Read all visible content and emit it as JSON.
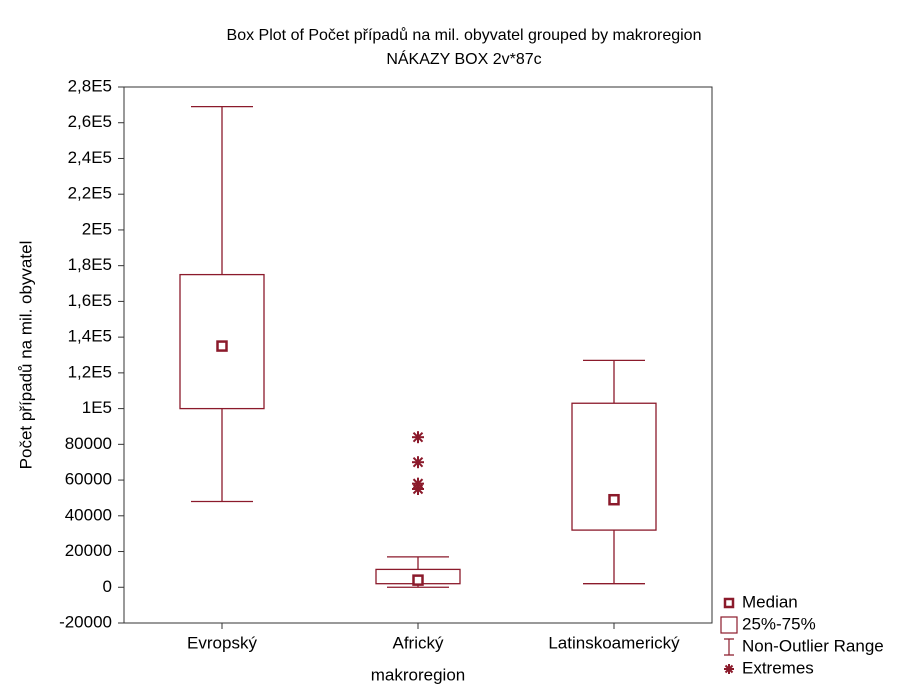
{
  "chart_data": {
    "type": "box",
    "title": "Box Plot of Počet případů na mil. obyvatel grouped by  makroregion",
    "subtitle": "NÁKAZY BOX 2v*87c",
    "x_label": "makroregion",
    "y_label": "Počet případů na mil. obyvatel",
    "categories": [
      "Evropský",
      "Africký",
      "Latinskoamerický"
    ],
    "boxes": [
      {
        "min": 48000,
        "q1": 100000,
        "median": 135000,
        "q3": 175000,
        "max": 269000,
        "extremes": []
      },
      {
        "min": 0,
        "q1": 2000,
        "median": 4000,
        "q3": 10000,
        "max": 17000,
        "extremes": [
          84000,
          70000,
          58000,
          55000
        ]
      },
      {
        "min": 2000,
        "q1": 32000,
        "median": 49000,
        "q3": 103000,
        "max": 127000,
        "extremes": []
      }
    ],
    "color": "#8b1a2b",
    "ylim": [
      -20000,
      280000
    ],
    "yticks": [
      -20000,
      0,
      20000,
      40000,
      60000,
      80000,
      {
        "value": 100000,
        "label": "1E5"
      },
      {
        "value": 120000,
        "label": "1,2E5"
      },
      {
        "value": 140000,
        "label": "1,4E5"
      },
      {
        "value": 160000,
        "label": "1,6E5"
      },
      {
        "value": 180000,
        "label": "1,8E5"
      },
      {
        "value": 200000,
        "label": "2E5"
      },
      {
        "value": 220000,
        "label": "2,2E5"
      },
      {
        "value": 240000,
        "label": "2,4E5"
      },
      {
        "value": 260000,
        "label": "2,6E5"
      },
      {
        "value": 280000,
        "label": "2,8E5"
      }
    ],
    "legend": [
      "Median",
      "25%-75%",
      "Non-Outlier Range",
      "Extremes"
    ]
  }
}
